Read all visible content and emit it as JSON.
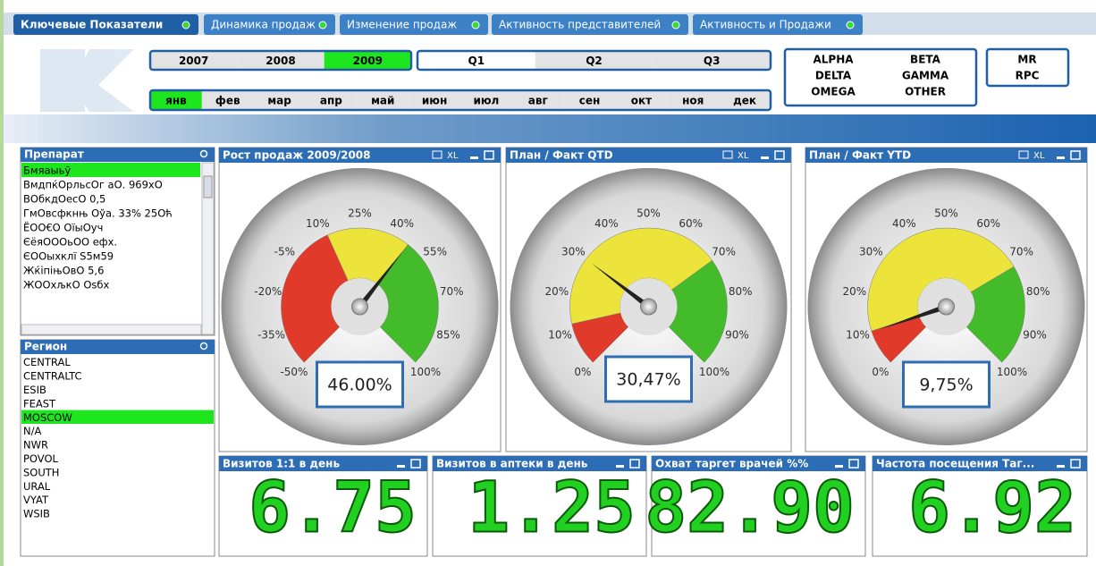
{
  "tabs": [
    "Ключевые Показатели",
    "Динамика продаж",
    "Изменение продаж",
    "Активность представителей",
    "Активность и Продажи"
  ],
  "years": [
    {
      "label": "2007",
      "selected": false
    },
    {
      "label": "2008",
      "selected": false
    },
    {
      "label": "2009",
      "selected": true
    }
  ],
  "quarters": [
    "Q1",
    "Q2",
    "Q3"
  ],
  "months": [
    {
      "label": "янв",
      "selected": true
    },
    {
      "label": "фев",
      "selected": false
    },
    {
      "label": "мар",
      "selected": false
    },
    {
      "label": "апр",
      "selected": false
    },
    {
      "label": "май",
      "selected": false
    },
    {
      "label": "июн",
      "selected": false
    },
    {
      "label": "июл",
      "selected": false
    },
    {
      "label": "авг",
      "selected": false
    },
    {
      "label": "сен",
      "selected": false
    },
    {
      "label": "окт",
      "selected": false
    },
    {
      "label": "ноя",
      "selected": false
    },
    {
      "label": "дек",
      "selected": false
    }
  ],
  "teams": [
    "ALPHA",
    "BETA",
    "DELTA",
    "GAMMA",
    "OMEGA",
    "OTHER"
  ],
  "roles": [
    "MR",
    "RPC"
  ],
  "listboxes": [
    {
      "title": "Препарат",
      "items": [
        {
          "label": "Бмяаыьӯ",
          "selected": true
        },
        {
          "label": "ВмдпќОрльсОг аО. 969хО",
          "selected": false
        },
        {
          "label": "ВОбкдОесО 0,5",
          "selected": false
        },
        {
          "label": "ГмОвсфкнњ Оўа. 33% 25Оћ",
          "selected": false
        },
        {
          "label": "ЁОО€О ОїыОуч",
          "selected": false
        },
        {
          "label": "ЄёяОООьОО  ефх.",
          "selected": false
        },
        {
          "label": "ЄООыхклї S5м59",
          "selected": false
        },
        {
          "label": "ЖќіпіњОвО 5,6",
          "selected": false
        },
        {
          "label": "ЖООхљкО Оsбх",
          "selected": false
        }
      ]
    },
    {
      "title": "Регион",
      "items": [
        {
          "label": "CENTRAL",
          "selected": false
        },
        {
          "label": "CENTRALTC",
          "selected": false
        },
        {
          "label": "ESIB",
          "selected": false
        },
        {
          "label": "FEAST",
          "selected": false
        },
        {
          "label": "MOSCOW",
          "selected": true
        },
        {
          "label": "N/A",
          "selected": false
        },
        {
          "label": "NWR",
          "selected": false
        },
        {
          "label": "POVOL",
          "selected": false
        },
        {
          "label": "SOUTH",
          "selected": false
        },
        {
          "label": "URAL",
          "selected": false
        },
        {
          "label": "VYAT",
          "selected": false
        },
        {
          "label": "WSIB",
          "selected": false
        }
      ]
    }
  ],
  "export_label": "XL",
  "gauges": [
    {
      "title": "Рост продаж 2009/2008",
      "value": 46,
      "readout": "46.00%",
      "ticks": [
        {
          "value": -50,
          "label": "-50%"
        },
        {
          "value": -35,
          "label": "-35%"
        },
        {
          "value": -20,
          "label": "-20%"
        },
        {
          "value": -5,
          "label": "-5%"
        },
        {
          "value": 10,
          "label": "10%"
        },
        {
          "value": 25,
          "label": "25%"
        },
        {
          "value": 40,
          "label": "40%"
        },
        {
          "value": 55,
          "label": "55%"
        },
        {
          "value": 70,
          "label": "70%"
        },
        {
          "value": 85,
          "label": "85%"
        },
        {
          "value": 100,
          "label": "100%"
        }
      ]
    },
    {
      "title": "План / Факт QTD",
      "value": 30.47,
      "readout": "30,47%",
      "ticks": [
        {
          "value": 0,
          "label": "0%"
        },
        {
          "value": 10,
          "label": "10%"
        },
        {
          "value": 20,
          "label": "20%"
        },
        {
          "value": 30,
          "label": "30%"
        },
        {
          "value": 40,
          "label": "40%"
        },
        {
          "value": 50,
          "label": "50%"
        },
        {
          "value": 60,
          "label": "60%"
        },
        {
          "value": 70,
          "label": "70%"
        },
        {
          "value": 80,
          "label": "80%"
        },
        {
          "value": 90,
          "label": "90%"
        },
        {
          "value": 100,
          "label": "100%"
        }
      ]
    },
    {
      "title": "План / Факт YTD",
      "value": 9.75,
      "readout": "9,75%",
      "ticks": [
        {
          "value": 0,
          "label": "0%"
        },
        {
          "value": 10,
          "label": "10%"
        },
        {
          "value": 20,
          "label": "20%"
        },
        {
          "value": 30,
          "label": "30%"
        },
        {
          "value": 40,
          "label": "40%"
        },
        {
          "value": 50,
          "label": "50%"
        },
        {
          "value": 60,
          "label": "60%"
        },
        {
          "value": 70,
          "label": "70%"
        },
        {
          "value": 80,
          "label": "80%"
        },
        {
          "value": 90,
          "label": "90%"
        },
        {
          "value": 100,
          "label": "100%"
        }
      ]
    }
  ],
  "kpis": [
    {
      "title": "Визитов 1:1 в день",
      "value": "6.75"
    },
    {
      "title": "Визитов в аптеки в день",
      "value": "1.25"
    },
    {
      "title": "Охват таргет врачей %%",
      "value": "82.90"
    },
    {
      "title": "Частота посещения Таг...",
      "value": "6.92"
    }
  ]
}
